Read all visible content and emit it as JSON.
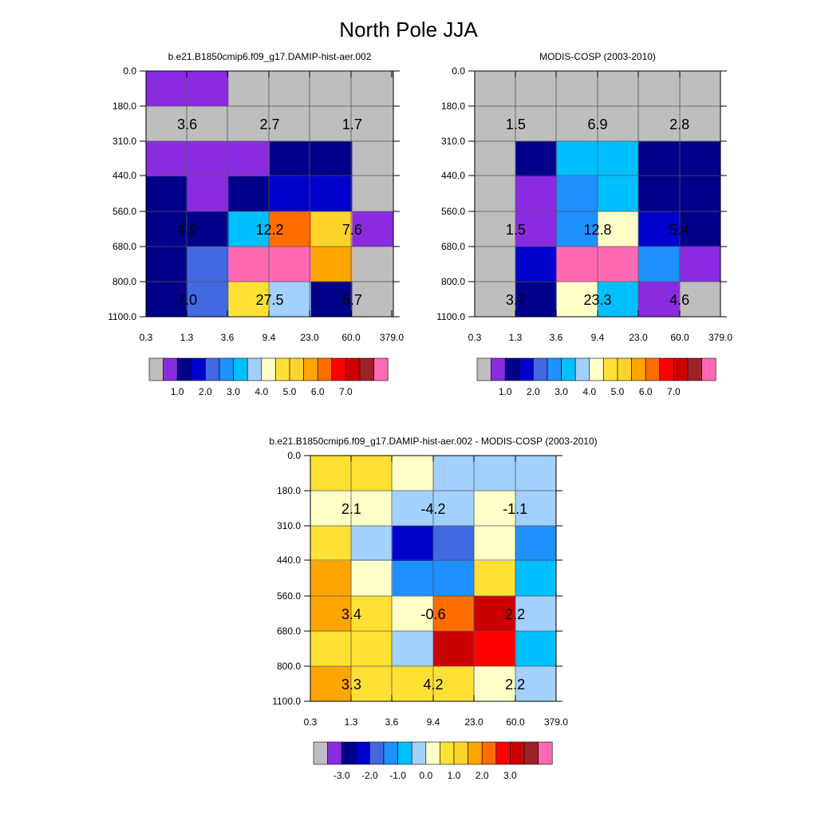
{
  "figure_title": "North Pole JJA",
  "palettes": {
    "abs": [
      "#bebebe",
      "#8a2be2",
      "#00008b",
      "#0000cd",
      "#4169e1",
      "#1e90ff",
      "#00bfff",
      "#a2d0ff",
      "#ffffc8",
      "#ffe135",
      "#ffd42a",
      "#ffa500",
      "#ff6c00",
      "#ff0000",
      "#cd0000",
      "#a0202a",
      "#ff69b4"
    ],
    "diff": [
      "#bebebe",
      "#8a2be2",
      "#00008b",
      "#0000cd",
      "#4169e1",
      "#1e90ff",
      "#00bfff",
      "#a2d0ff",
      "#ffffc8",
      "#ffe135",
      "#ffd42a",
      "#ffa500",
      "#ff6c00",
      "#ff0000",
      "#cd0000",
      "#a0202a",
      "#ff69b4"
    ]
  },
  "chart_data": [
    {
      "type": "heatmap",
      "title": "b.e21.B1850cmip6.f09_g17.DAMIP-hist-aer.002",
      "xticks": [
        "0.3",
        "1.3",
        "3.6",
        "9.4",
        "23.0",
        "60.0",
        "379.0"
      ],
      "yticks": [
        "0.0",
        "180.0",
        "310.0",
        "440.0",
        "560.0",
        "680.0",
        "800.0",
        "1100.0"
      ],
      "cells": [
        [
          1,
          1,
          0,
          0,
          0,
          0
        ],
        [
          0,
          0,
          0,
          0,
          0,
          0
        ],
        [
          1,
          1,
          1,
          2,
          2,
          0
        ],
        [
          2,
          1,
          2,
          3,
          3,
          0
        ],
        [
          2,
          2,
          6,
          12,
          10,
          1
        ],
        [
          2,
          4,
          16,
          16,
          11,
          0
        ],
        [
          2,
          4,
          9,
          7,
          2,
          0
        ]
      ],
      "labels": [
        {
          "row": 1,
          "col": 0,
          "text": "3.6"
        },
        {
          "row": 1,
          "col": 2,
          "text": "2.7"
        },
        {
          "row": 1,
          "col": 4,
          "text": "1.7"
        },
        {
          "row": 4,
          "col": 0,
          "text": "4.9"
        },
        {
          "row": 4,
          "col": 2,
          "text": "12.2"
        },
        {
          "row": 4,
          "col": 4,
          "text": "7.6"
        },
        {
          "row": 6,
          "col": 0,
          "text": "7.0"
        },
        {
          "row": 6,
          "col": 2,
          "text": "27.5"
        },
        {
          "row": 6,
          "col": 4,
          "text": "6.7"
        }
      ],
      "colorbar": {
        "palette": "abs",
        "labels": [
          "1.0",
          "2.0",
          "3.0",
          "4.0",
          "5.0",
          "6.0",
          "7.0"
        ],
        "label_start_box": 2,
        "label_step": 2
      }
    },
    {
      "type": "heatmap",
      "title": "MODIS-COSP (2003-2010)",
      "xticks": [
        "0.3",
        "1.3",
        "3.6",
        "9.4",
        "23.0",
        "60.0",
        "379.0"
      ],
      "yticks": [
        "0.0",
        "180.0",
        "310.0",
        "440.0",
        "560.0",
        "680.0",
        "800.0",
        "1100.0"
      ],
      "cells": [
        [
          0,
          0,
          0,
          0,
          0,
          0
        ],
        [
          0,
          0,
          0,
          0,
          0,
          0
        ],
        [
          0,
          2,
          6,
          6,
          2,
          2
        ],
        [
          0,
          1,
          5,
          6,
          2,
          2
        ],
        [
          0,
          1,
          5,
          8,
          3,
          2
        ],
        [
          0,
          3,
          16,
          16,
          5,
          1
        ],
        [
          0,
          2,
          8,
          6,
          1,
          0
        ]
      ],
      "labels": [
        {
          "row": 1,
          "col": 0,
          "text": "1.5"
        },
        {
          "row": 1,
          "col": 2,
          "text": "6.9"
        },
        {
          "row": 1,
          "col": 4,
          "text": "2.8"
        },
        {
          "row": 4,
          "col": 0,
          "text": "1.5"
        },
        {
          "row": 4,
          "col": 2,
          "text": "12.8"
        },
        {
          "row": 4,
          "col": 4,
          "text": "5.4"
        },
        {
          "row": 6,
          "col": 0,
          "text": "3.7"
        },
        {
          "row": 6,
          "col": 2,
          "text": "23.3"
        },
        {
          "row": 6,
          "col": 4,
          "text": "4.6"
        }
      ],
      "colorbar": {
        "palette": "abs",
        "labels": [
          "1.0",
          "2.0",
          "3.0",
          "4.0",
          "5.0",
          "6.0",
          "7.0"
        ],
        "label_start_box": 2,
        "label_step": 2
      }
    },
    {
      "type": "heatmap",
      "title": "b.e21.B1850cmip6.f09_g17.DAMIP-hist-aer.002 - MODIS-COSP (2003-2010)",
      "xticks": [
        "0.3",
        "1.3",
        "3.6",
        "9.4",
        "23.0",
        "60.0",
        "379.0"
      ],
      "yticks": [
        "0.0",
        "180.0",
        "310.0",
        "440.0",
        "560.0",
        "680.0",
        "800.0",
        "1100.0"
      ],
      "cells": [
        [
          9,
          9,
          8,
          7,
          7,
          7
        ],
        [
          8,
          8,
          7,
          7,
          8,
          7
        ],
        [
          9,
          7,
          3,
          4,
          8,
          5
        ],
        [
          11,
          8,
          5,
          5,
          9,
          6
        ],
        [
          11,
          9,
          8,
          12,
          14,
          7
        ],
        [
          9,
          9,
          7,
          14,
          13,
          6
        ],
        [
          11,
          9,
          9,
          9,
          8,
          7
        ]
      ],
      "labels": [
        {
          "row": 1,
          "col": 0,
          "text": "2.1"
        },
        {
          "row": 1,
          "col": 2,
          "text": "-4.2"
        },
        {
          "row": 1,
          "col": 4,
          "text": "-1.1"
        },
        {
          "row": 4,
          "col": 0,
          "text": "3.4"
        },
        {
          "row": 4,
          "col": 2,
          "text": "-0.6"
        },
        {
          "row": 4,
          "col": 4,
          "text": "2.2"
        },
        {
          "row": 6,
          "col": 0,
          "text": "3.3"
        },
        {
          "row": 6,
          "col": 2,
          "text": "4.2"
        },
        {
          "row": 6,
          "col": 4,
          "text": "2.2"
        }
      ],
      "colorbar": {
        "palette": "diff",
        "labels": [
          "-3.0",
          "-2.0",
          "-1.0",
          "0.0",
          "1.0",
          "2.0",
          "3.0"
        ],
        "label_start_box": 2,
        "label_step": 2
      }
    }
  ]
}
